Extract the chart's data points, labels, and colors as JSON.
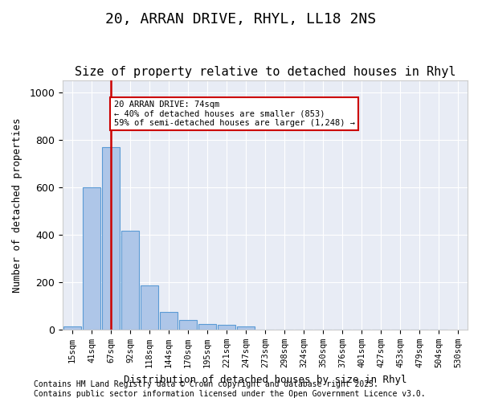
{
  "title": "20, ARRAN DRIVE, RHYL, LL18 2NS",
  "subtitle": "Size of property relative to detached houses in Rhyl",
  "xlabel": "Distribution of detached houses by size in Rhyl",
  "ylabel": "Number of detached properties",
  "bins": [
    "15sqm",
    "41sqm",
    "67sqm",
    "92sqm",
    "118sqm",
    "144sqm",
    "170sqm",
    "195sqm",
    "221sqm",
    "247sqm",
    "273sqm",
    "298sqm",
    "324sqm",
    "350sqm",
    "376sqm",
    "401sqm",
    "427sqm",
    "453sqm",
    "479sqm",
    "504sqm",
    "530sqm"
  ],
  "values": [
    15,
    600,
    770,
    415,
    185,
    75,
    40,
    25,
    20,
    15,
    0,
    0,
    0,
    0,
    0,
    0,
    0,
    0,
    0,
    0
  ],
  "bar_color": "#aec6e8",
  "bar_edge_color": "#5b9bd5",
  "vline_x": 2,
  "vline_color": "#cc0000",
  "annotation_text": "20 ARRAN DRIVE: 74sqm\n← 40% of detached houses are smaller (853)\n59% of semi-detached houses are larger (1,248) →",
  "annotation_box_color": "#ffffff",
  "annotation_box_edge": "#cc0000",
  "background_color": "#e8ecf5",
  "footer": "Contains HM Land Registry data © Crown copyright and database right 2025.\nContains public sector information licensed under the Open Government Licence v3.0.",
  "ylim": [
    0,
    1050
  ],
  "yticks": [
    0,
    200,
    400,
    600,
    800,
    1000
  ],
  "title_fontsize": 13,
  "subtitle_fontsize": 11,
  "axis_fontsize": 9,
  "footer_fontsize": 7
}
